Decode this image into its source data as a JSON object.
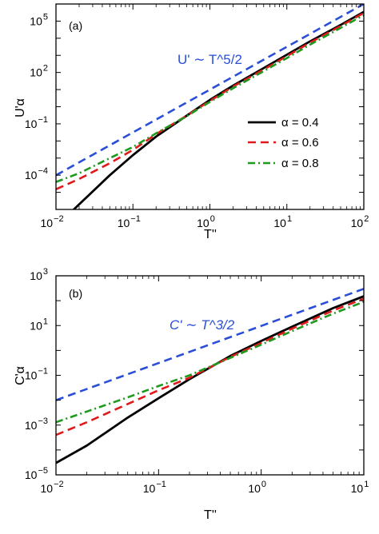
{
  "chart_data": [
    {
      "panel": "(a)",
      "type": "line",
      "xscale": "log",
      "yscale": "log",
      "xlim": [
        0.01,
        100
      ],
      "ylim": [
        1e-06,
        1000000.0
      ],
      "xlabel": "T''",
      "ylabel": "U'α",
      "x_ticks": [
        "10^-2",
        "10^-1",
        "10^0",
        "10^1",
        "10^2"
      ],
      "y_ticks": [
        "10^-4",
        "10^-1",
        "10^2",
        "10^5"
      ],
      "legend": {
        "position": "center-right",
        "entries": [
          "α = 0.4",
          "α = 0.6",
          "α = 0.8"
        ]
      },
      "annotation": {
        "text": "U' ∼ T^5/2",
        "color": "#2a4fd6"
      },
      "series": [
        {
          "name": "α = 0.4",
          "color": "#000000",
          "style": "solid",
          "x": [
            0.01,
            0.02,
            0.05,
            0.1,
            0.2,
            0.5,
            1,
            2,
            5,
            10,
            20,
            50,
            100
          ],
          "y": [
            1e-07,
            2e-06,
            0.0001,
            0.0015,
            0.018,
            0.3,
            2.5,
            17,
            180,
            1100,
            6500,
            60000,
            350000
          ]
        },
        {
          "name": "α = 0.6",
          "color": "#e0191b",
          "style": "dashed",
          "x": [
            0.01,
            0.02,
            0.05,
            0.1,
            0.2,
            0.5,
            1,
            2,
            5,
            10,
            20,
            50,
            100
          ],
          "y": [
            1.5e-05,
            6e-05,
            0.0005,
            0.003,
            0.025,
            0.3,
            2.2,
            15,
            150,
            900,
            5500,
            52000,
            300000
          ]
        },
        {
          "name": "α = 0.8",
          "color": "#1f9a1f",
          "style": "dashdot",
          "x": [
            0.01,
            0.02,
            0.05,
            0.1,
            0.2,
            0.5,
            1,
            2,
            5,
            10,
            20,
            50,
            100
          ],
          "y": [
            4e-05,
            0.00013,
            0.001,
            0.0045,
            0.028,
            0.28,
            1.9,
            12,
            120,
            700,
            4200,
            40000,
            230000
          ]
        },
        {
          "name": "U' ∼ T^5/2",
          "color": "#2a4fd6",
          "style": "dashed",
          "x": [
            0.01,
            100
          ],
          "y": [
            0.0001,
            1000000.0
          ]
        }
      ]
    },
    {
      "panel": "(b)",
      "type": "line",
      "xscale": "log",
      "yscale": "log",
      "xlim": [
        0.01,
        10
      ],
      "ylim": [
        1e-05,
        1000
      ],
      "xlabel": "T''",
      "ylabel": "C'α",
      "x_ticks": [
        "10^-2",
        "10^-1",
        "10^0",
        "10^1"
      ],
      "y_ticks": [
        "10^-5",
        "10^-3",
        "10^-1",
        "10^1",
        "10^3"
      ],
      "annotation": {
        "text": "C' ∼ T^3/2",
        "color": "#2a4fd6"
      },
      "series": [
        {
          "name": "α = 0.4",
          "color": "#000000",
          "style": "solid",
          "x": [
            0.01,
            0.02,
            0.05,
            0.1,
            0.2,
            0.5,
            1,
            2,
            5,
            10
          ],
          "y": [
            3e-05,
            0.00015,
            0.002,
            0.012,
            0.07,
            0.6,
            2.4,
            9,
            50,
            150
          ]
        },
        {
          "name": "α = 0.6",
          "color": "#e0191b",
          "style": "dashed",
          "x": [
            0.01,
            0.02,
            0.05,
            0.1,
            0.2,
            0.5,
            1,
            2,
            5,
            10
          ],
          "y": [
            0.0004,
            0.0013,
            0.007,
            0.025,
            0.08,
            0.55,
            2.0,
            7.5,
            40,
            120
          ]
        },
        {
          "name": "α = 0.8",
          "color": "#1f9a1f",
          "style": "dashdot",
          "x": [
            0.01,
            0.02,
            0.05,
            0.1,
            0.2,
            0.5,
            1,
            2,
            5,
            10
          ],
          "y": [
            0.0013,
            0.0035,
            0.013,
            0.037,
            0.1,
            0.5,
            1.7,
            6,
            30,
            90
          ]
        },
        {
          "name": "C' ∼ T^3/2",
          "color": "#2a4fd6",
          "style": "dashed",
          "x": [
            0.01,
            10
          ],
          "y": [
            0.01,
            300
          ]
        }
      ]
    }
  ]
}
